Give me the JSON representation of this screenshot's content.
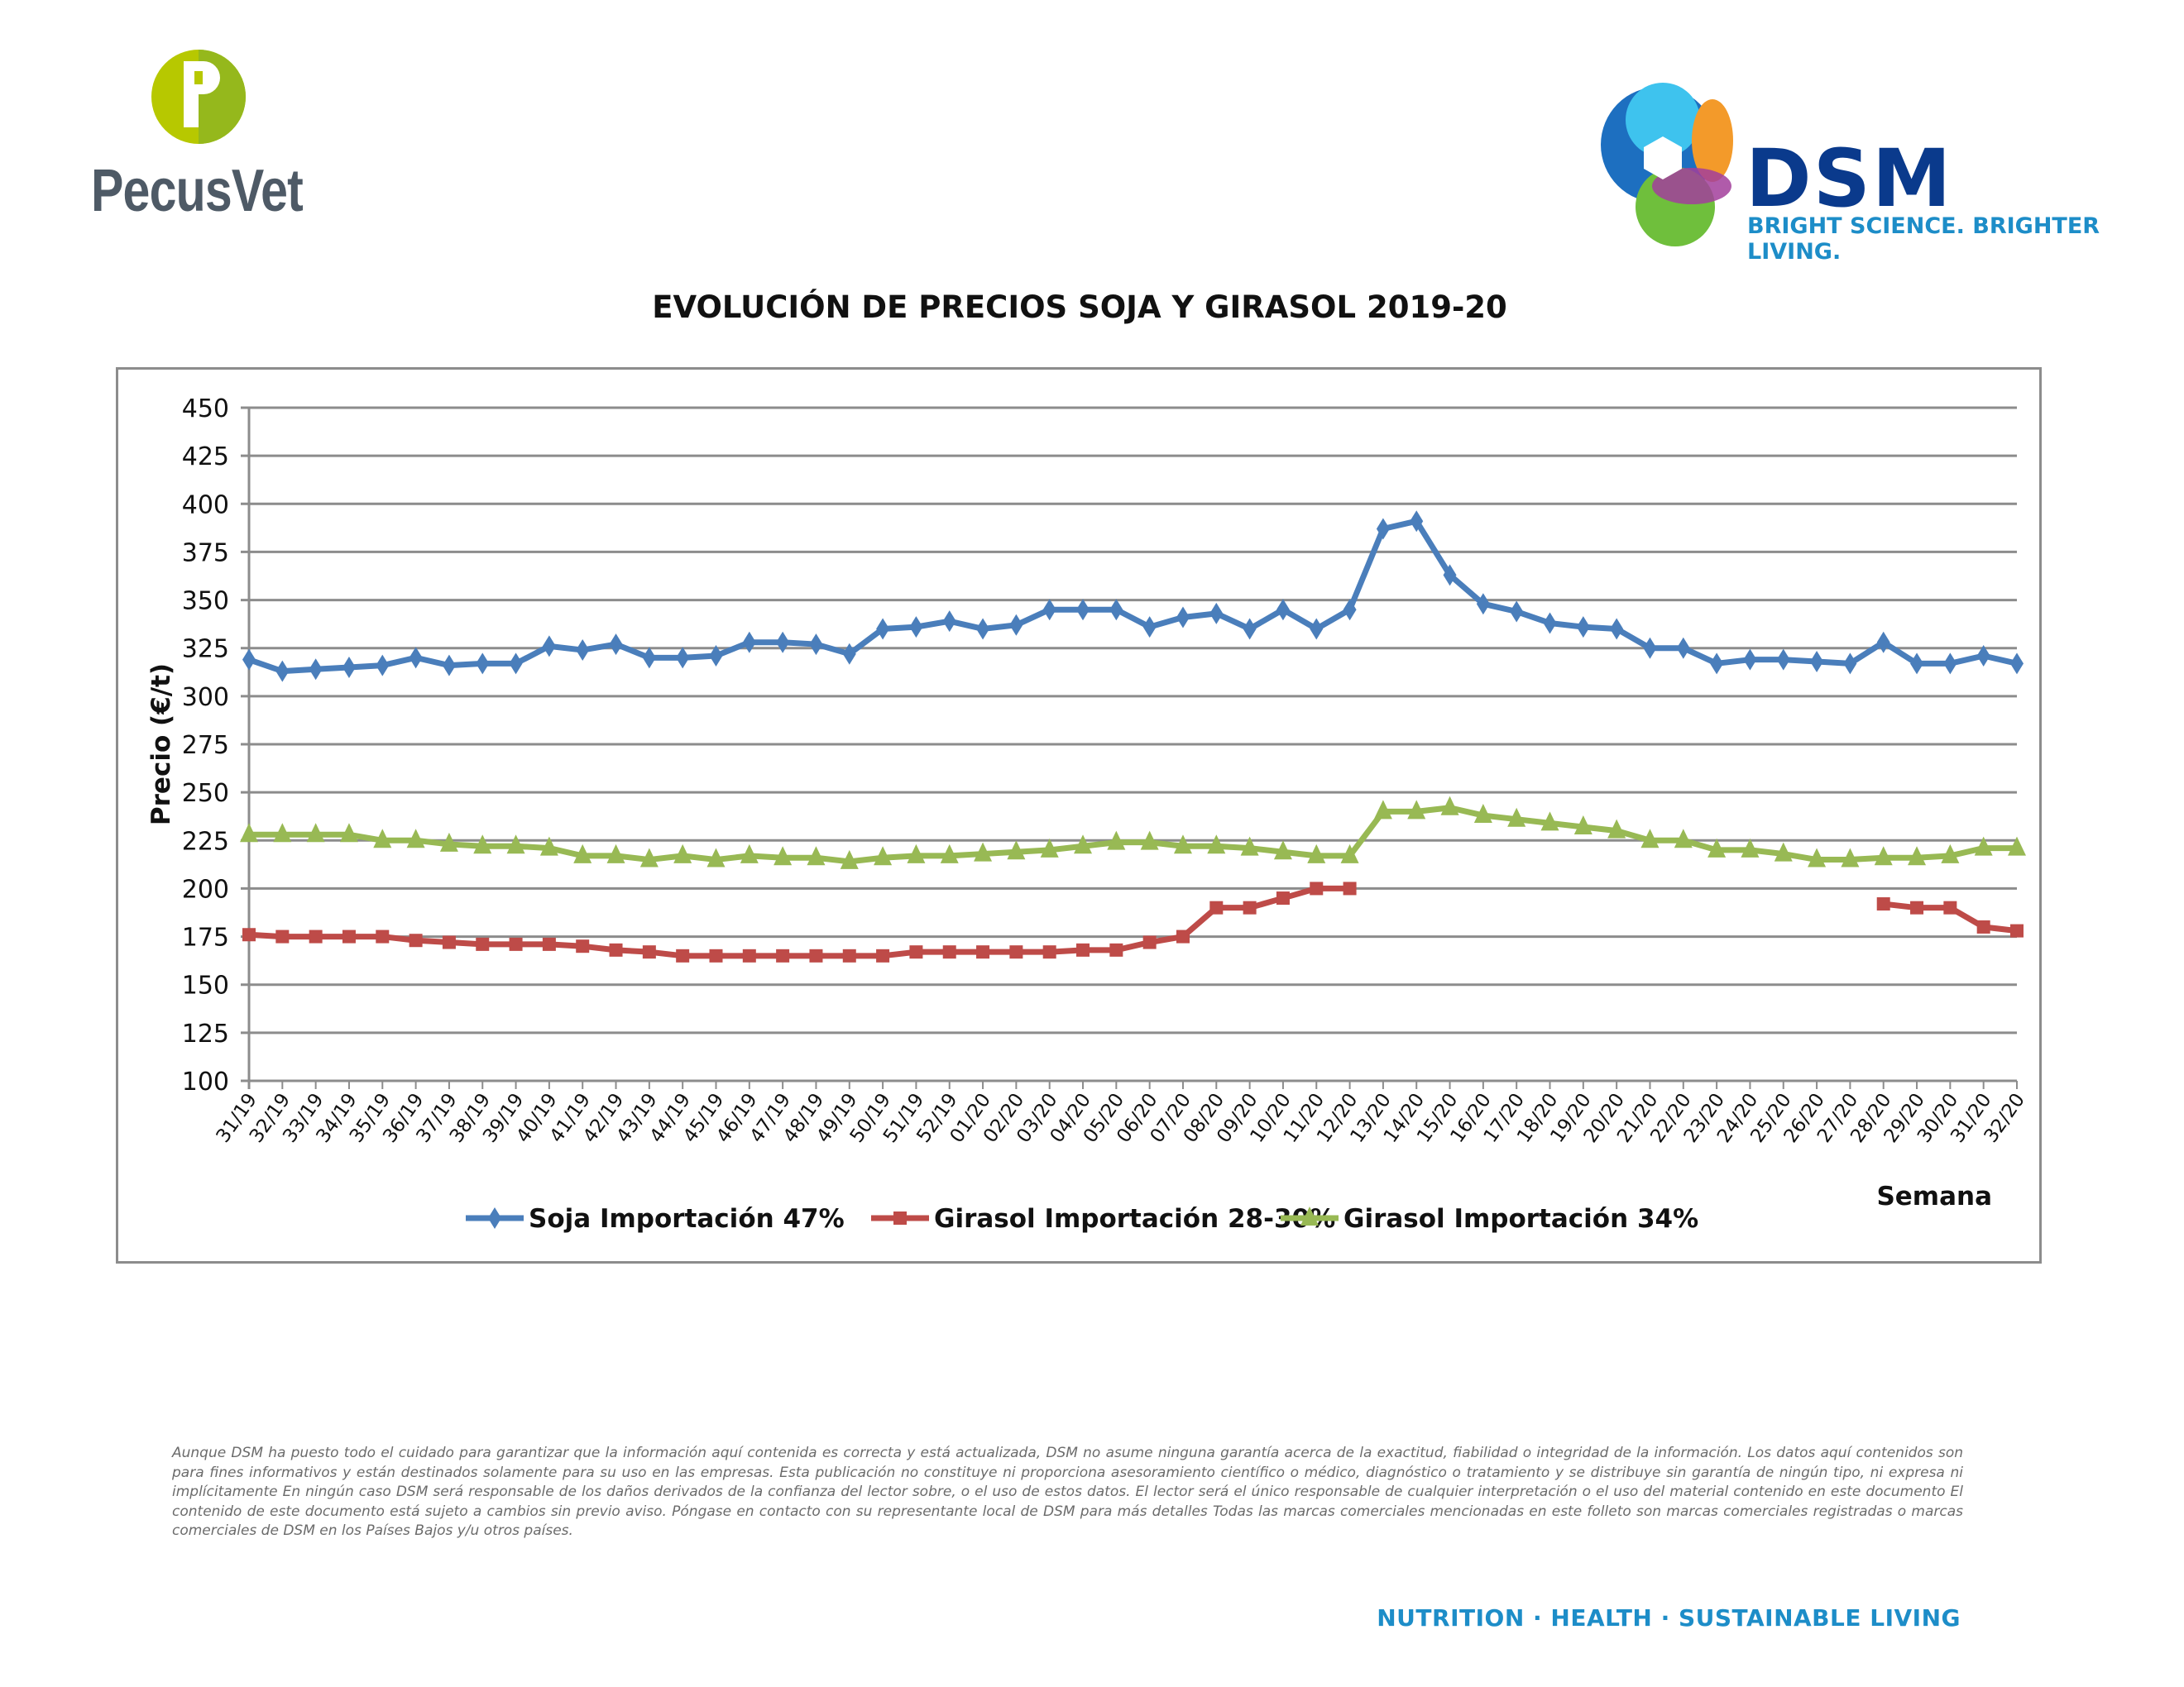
{
  "logos": {
    "left": {
      "name": "PecusVet",
      "color": "#4e5a66",
      "accent": "#b7c800"
    },
    "right": {
      "name": "DSM",
      "slogan": "BRIGHT SCIENCE. BRIGHTER LIVING.",
      "color": "#0a3a8c"
    }
  },
  "footer": {
    "disclaimer": "Aunque DSM ha puesto todo el cuidado para garantizar que la información aquí contenida es correcta y está actualizada, DSM no asume ninguna garantía acerca de la exactitud, fiabilidad o integridad de la información. Los datos aquí contenidos son para fines informativos y están destinados solamente para su uso en las empresas. Esta publicación no constituye ni proporciona asesoramiento científico o médico, diagnóstico o tratamiento y se distribuye sin garantía de ningún tipo, ni expresa ni implícitamente En ningún caso DSM será responsable de los daños derivados de la confianza del lector sobre, o el uso de estos datos. El lector será el único responsable de cualquier interpretación o el uso del material contenido en este documento El contenido de este documento está sujeto a cambios sin previo aviso. Póngase en contacto con su representante local de DSM para más detalles Todas las marcas comerciales mencionadas en este folleto son marcas comerciales registradas o marcas comerciales de DSM en los Países Bajos y/u otros países.",
    "tagline": "NUTRITION · HEALTH · SUSTAINABLE LIVING"
  },
  "chart_data": {
    "type": "line",
    "title": "EVOLUCIÓN DE PRECIOS SOJA Y GIRASOL 2019-20",
    "xlabel": "Semana",
    "ylabel": "Precio (€/t)",
    "ylim": [
      100,
      450
    ],
    "yticks": [
      100,
      125,
      150,
      175,
      200,
      225,
      250,
      275,
      300,
      325,
      350,
      375,
      400,
      425,
      450
    ],
    "grid": true,
    "legend": "bottom",
    "categories": [
      "31/19",
      "32/19",
      "33/19",
      "34/19",
      "35/19",
      "36/19",
      "37/19",
      "38/19",
      "39/19",
      "40/19",
      "41/19",
      "42/19",
      "43/19",
      "44/19",
      "45/19",
      "46/19",
      "47/19",
      "48/19",
      "49/19",
      "50/19",
      "51/19",
      "52/19",
      "01/20",
      "02/20",
      "03/20",
      "04/20",
      "05/20",
      "06/20",
      "07/20",
      "08/20",
      "09/20",
      "10/20",
      "11/20",
      "12/20",
      "13/20",
      "14/20",
      "15/20",
      "16/20",
      "17/20",
      "18/20",
      "19/20",
      "20/20",
      "21/20",
      "22/20",
      "23/20",
      "24/20",
      "25/20",
      "26/20",
      "27/20",
      "28/20",
      "29/20",
      "30/20",
      "31/20",
      "32/20"
    ],
    "series": [
      {
        "name": "Soja Importación 47%",
        "color": "#4a7ebb",
        "marker": "diamond",
        "values": [
          319,
          313,
          314,
          315,
          316,
          320,
          316,
          317,
          317,
          326,
          324,
          327,
          320,
          320,
          321,
          328,
          328,
          327,
          322,
          335,
          336,
          339,
          335,
          337,
          345,
          345,
          345,
          336,
          341,
          343,
          335,
          345,
          335,
          345,
          387,
          391,
          363,
          348,
          344,
          338,
          336,
          335,
          325,
          325,
          317,
          319,
          319,
          318,
          317,
          328,
          317,
          317,
          321,
          317
        ]
      },
      {
        "name": "Girasol Importación 28-30%",
        "color": "#be4b48",
        "marker": "square",
        "values": [
          176,
          175,
          175,
          175,
          175,
          173,
          172,
          171,
          171,
          171,
          170,
          168,
          167,
          165,
          165,
          165,
          165,
          165,
          165,
          165,
          167,
          167,
          167,
          167,
          167,
          168,
          168,
          172,
          175,
          190,
          190,
          195,
          200,
          200,
          null,
          null,
          null,
          null,
          null,
          null,
          null,
          null,
          null,
          null,
          null,
          null,
          null,
          null,
          null,
          192,
          190,
          190,
          180,
          178
        ]
      },
      {
        "name": "Girasol Importación 34%",
        "color": "#98b954",
        "marker": "triangle",
        "values": [
          228,
          228,
          228,
          228,
          225,
          225,
          223,
          222,
          222,
          221,
          217,
          217,
          215,
          217,
          215,
          217,
          216,
          216,
          214,
          216,
          217,
          217,
          218,
          219,
          220,
          222,
          224,
          224,
          222,
          222,
          221,
          219,
          217,
          217,
          240,
          240,
          242,
          238,
          236,
          234,
          232,
          230,
          225,
          225,
          220,
          220,
          218,
          215,
          215,
          216,
          216,
          217,
          221,
          221
        ]
      }
    ]
  }
}
